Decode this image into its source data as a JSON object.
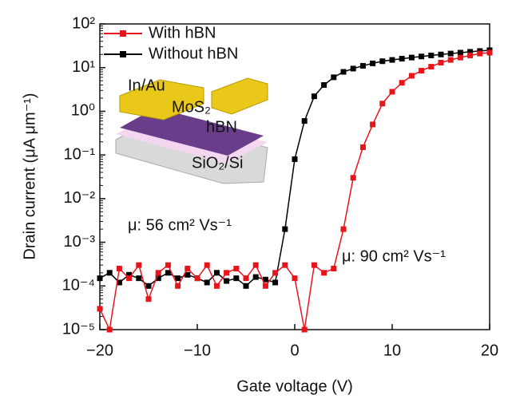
{
  "chart_data": {
    "type": "line",
    "x_label": "Gate voltage (V)",
    "y_label": "Drain current (μA μm⁻¹)",
    "y_log": true,
    "legend": "upper left",
    "x": [
      -20,
      -19,
      -18,
      -17,
      -16,
      -15,
      -14,
      -13,
      -12,
      -11,
      -10,
      -9,
      -8,
      -7,
      -6,
      -5,
      -4,
      -3,
      -2,
      -1,
      0,
      1,
      2,
      3,
      4,
      5,
      6,
      7,
      8,
      9,
      10,
      11,
      12,
      13,
      14,
      15,
      16,
      17,
      18,
      19,
      20
    ],
    "series": [
      {
        "name": "With hBN",
        "color": "#e8141c",
        "values": [
          3e-05,
          1e-05,
          0.00025,
          0.00015,
          0.0003,
          5e-05,
          0.0002,
          0.0003,
          0.0001,
          0.00025,
          0.00015,
          0.0003,
          0.0001,
          0.0002,
          0.00025,
          0.00015,
          0.0003,
          0.0001,
          0.0002,
          0.0003,
          0.00015,
          1e-05,
          0.0003,
          0.0002,
          0.00025,
          0.002,
          0.03,
          0.15,
          0.5,
          1.5,
          2.8,
          4.5,
          6.5,
          8.5,
          10.5,
          13,
          15,
          17,
          19,
          21,
          22
        ]
      },
      {
        "name": "Without hBN",
        "color": "#000000",
        "values": [
          0.00015,
          0.0002,
          0.00012,
          0.00018,
          0.00015,
          0.0001,
          0.00015,
          0.0002,
          0.00015,
          0.00018,
          0.00015,
          0.00012,
          0.0002,
          0.00013,
          0.00015,
          0.0001,
          0.00016,
          0.00014,
          0.00012,
          0.002,
          0.08,
          0.6,
          2.2,
          4,
          6,
          8,
          9.5,
          11,
          12.5,
          14,
          15,
          16,
          17,
          18,
          19,
          20,
          21,
          22,
          23,
          24,
          25
        ]
      }
    ],
    "xlim": [
      -20,
      20
    ],
    "xticks": [
      {
        "value": -20,
        "label": "−20"
      },
      {
        "value": -10,
        "label": "−10"
      },
      0,
      10,
      20
    ],
    "ylim": [
      1e-05,
      100
    ],
    "yticks": [
      {
        "value": 100,
        "label": "10²"
      },
      {
        "value": 10,
        "label": "10¹"
      },
      {
        "value": 1,
        "label": "10⁰"
      },
      {
        "value": 0.1,
        "label": "10⁻¹"
      },
      {
        "value": 0.01,
        "label": "10⁻²"
      },
      {
        "value": 0.001,
        "label": "10⁻³"
      },
      {
        "value": 0.0001,
        "label": "10⁻⁴"
      },
      {
        "value": 1e-05,
        "label": "10⁻⁵"
      }
    ],
    "annotations": [
      "μ: 56 cm² Vs⁻¹",
      "μ: 90 cm² Vs⁻¹"
    ],
    "inset_labels": [
      "In/Au",
      "MoS₂",
      "hBN",
      "SiO₂/Si"
    ]
  }
}
